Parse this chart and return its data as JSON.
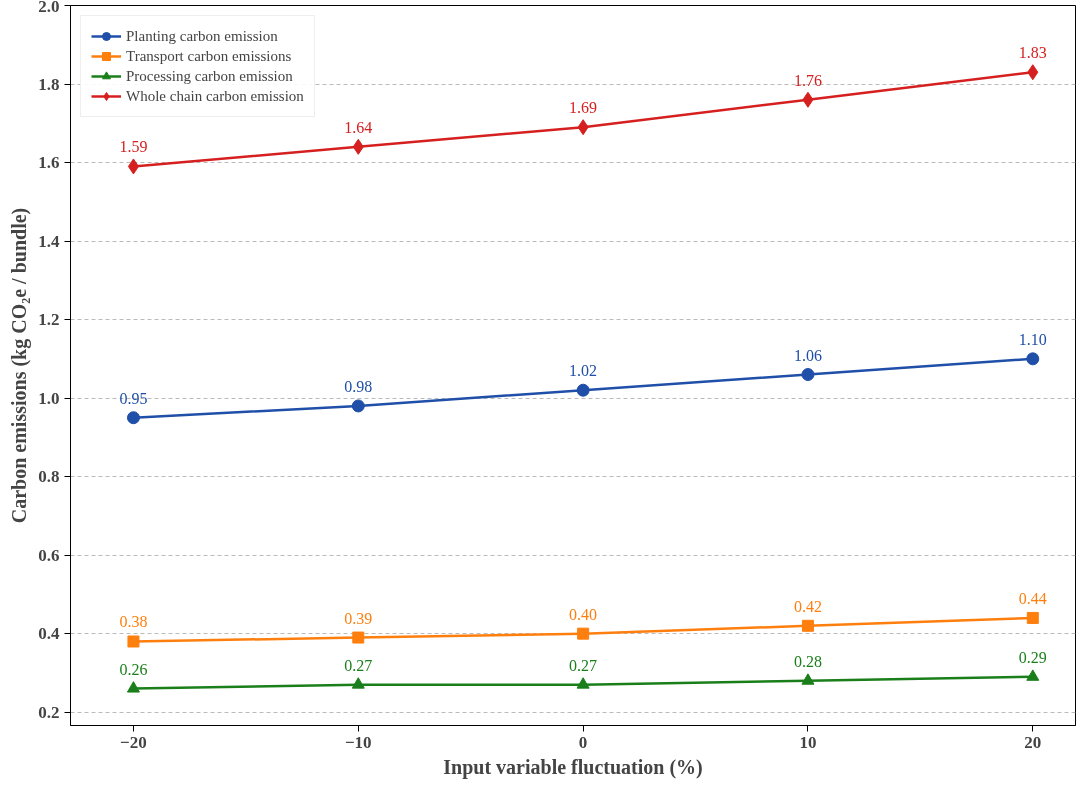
{
  "chart_data": {
    "type": "line",
    "xlabel": "Input variable fluctuation (%)",
    "ylabel": "Carbon emissions (kg CO₂e / bundle)",
    "x": [
      -20,
      -10,
      0,
      10,
      20
    ],
    "series": [
      {
        "name": "Planting carbon emission",
        "color": "#1f4fa8",
        "marker": "circle",
        "values": [
          0.95,
          0.98,
          1.02,
          1.06,
          1.1
        ],
        "value_labels": [
          "0.95",
          "0.98",
          "1.02",
          "1.06",
          "1.10"
        ]
      },
      {
        "name": "Transport carbon emissions",
        "color": "#ff7f0e",
        "marker": "square",
        "values": [
          0.38,
          0.39,
          0.4,
          0.42,
          0.44
        ],
        "value_labels": [
          "0.38",
          "0.39",
          "0.40",
          "0.42",
          "0.44"
        ]
      },
      {
        "name": "Processing carbon emission",
        "color": "#1a7f1a",
        "marker": "triangle",
        "values": [
          0.26,
          0.27,
          0.27,
          0.28,
          0.29
        ],
        "value_labels": [
          "0.26",
          "0.27",
          "0.27",
          "0.28",
          "0.29"
        ]
      },
      {
        "name": "Whole chain carbon emission",
        "color": "#d62020",
        "marker": "diamond",
        "values": [
          1.59,
          1.64,
          1.69,
          1.76,
          1.83
        ],
        "value_labels": [
          "1.59",
          "1.64",
          "1.69",
          "1.76",
          "1.83"
        ]
      }
    ],
    "xlim": [
      -22.8,
      21.9
    ],
    "xticks": [
      -20,
      -10,
      0,
      10,
      20
    ],
    "ylim": [
      0.166,
      2.0
    ],
    "yticks": [
      {
        "value": 0.2,
        "label": "0.2"
      },
      {
        "value": 0.4,
        "label": "0.4"
      },
      {
        "value": 0.6,
        "label": "0.6"
      },
      {
        "value": 0.8,
        "label": "0.8"
      },
      {
        "value": 1.0,
        "label": "1.0"
      },
      {
        "value": 1.2,
        "label": "1.2"
      },
      {
        "value": 1.4,
        "label": "1.4"
      },
      {
        "value": 1.6,
        "label": "1.6"
      },
      {
        "value": 1.8,
        "label": "1.8"
      },
      {
        "value": 2.0,
        "label": "2.0"
      }
    ],
    "grid": "y",
    "legend": "top left",
    "line_style": "solid"
  }
}
